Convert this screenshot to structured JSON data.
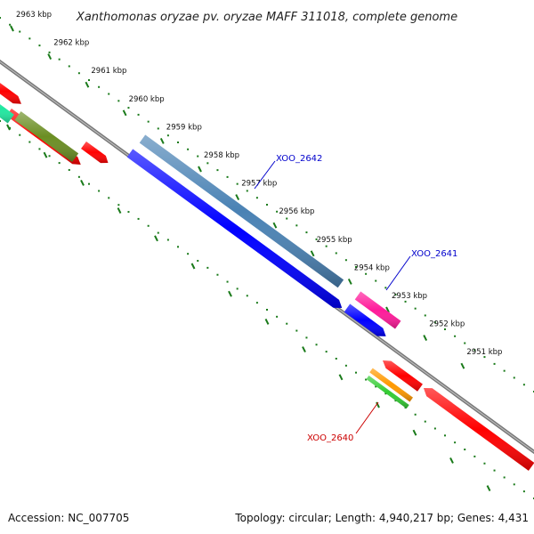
{
  "title": "Xanthomonas oryzae pv. oryzae MAFF 311018, complete genome",
  "ruler": {
    "unit_suffix": "kbp",
    "ticks": [
      {
        "value": 2963,
        "label": "2963 kbp"
      },
      {
        "value": 2962,
        "label": "2962 kbp"
      },
      {
        "value": 2961,
        "label": "2961 kbp"
      },
      {
        "value": 2960,
        "label": "2960 kbp"
      },
      {
        "value": 2959,
        "label": "2959 kbp"
      },
      {
        "value": 2958,
        "label": "2958 kbp"
      },
      {
        "value": 2957,
        "label": "2957 kbp"
      },
      {
        "value": 2956,
        "label": "2956 kbp"
      },
      {
        "value": 2955,
        "label": "2955 kbp"
      },
      {
        "value": 2954,
        "label": "2954 kbp"
      },
      {
        "value": 2953,
        "label": "2953 kbp"
      },
      {
        "value": 2952,
        "label": "2952 kbp"
      },
      {
        "value": 2951,
        "label": "2951 kbp"
      }
    ]
  },
  "gene_labels": [
    {
      "name": "XOO_2642",
      "color": "#0000cc"
    },
    {
      "name": "XOO_2641",
      "color": "#0000cc"
    },
    {
      "name": "XOO_2640",
      "color": "#cc0000"
    }
  ],
  "colors": {
    "backbone": "#888888",
    "tick_green": "#1a7a1a",
    "red": "#ff0000",
    "blue": "#0000ff",
    "steel_blue": "#4a82b4",
    "magenta": "#ff1a9a",
    "olive": "#6b8e23",
    "teal": "#20e8a0",
    "orange": "#ff9900",
    "green": "#33cc33"
  },
  "footer": {
    "accession": "Accession: NC_007705",
    "summary": "Topology: circular; Length: 4,940,217 bp; Genes: 4,431"
  }
}
